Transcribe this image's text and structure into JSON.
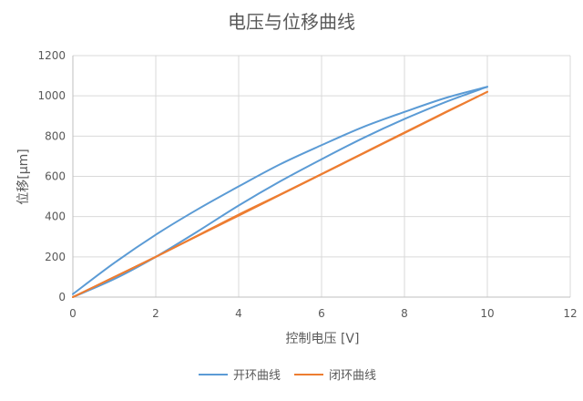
{
  "chart_data": {
    "type": "line",
    "title": "电压与位移曲线",
    "xlabel": "控制电压 [V]",
    "ylabel": "位移[μm]",
    "xlim": [
      0,
      12
    ],
    "ylim": [
      0,
      1200
    ],
    "xticks": [
      0,
      2,
      4,
      6,
      8,
      10,
      12
    ],
    "yticks": [
      0,
      200,
      400,
      600,
      800,
      1000,
      1200
    ],
    "grid": true,
    "legend_position": "bottom",
    "series": [
      {
        "name": "开环曲线",
        "color": "#5b9bd5",
        "segments": [
          {
            "label": "ascending",
            "x": [
              0,
              1,
              2,
              3,
              4,
              5,
              6,
              7,
              8,
              9,
              10
            ],
            "y": [
              0,
              90,
              200,
              325,
              455,
              575,
              685,
              790,
              885,
              970,
              1045
            ]
          },
          {
            "label": "descending",
            "x": [
              10,
              9,
              8,
              7,
              6,
              5,
              4,
              3,
              2,
              1,
              0
            ],
            "y": [
              1045,
              990,
              920,
              845,
              755,
              660,
              550,
              435,
              310,
              170,
              15
            ]
          }
        ]
      },
      {
        "name": "闭环曲线",
        "color": "#ed7d31",
        "segments": [
          {
            "label": "ascending",
            "x": [
              0,
              1,
              2,
              3,
              4,
              5,
              6,
              7,
              8,
              9,
              10
            ],
            "y": [
              0,
              100,
              200,
              305,
              410,
              510,
              612,
              715,
              818,
              920,
              1020
            ]
          },
          {
            "label": "descending",
            "x": [
              10,
              9,
              8,
              7,
              6,
              5,
              4,
              3,
              2,
              1,
              0
            ],
            "y": [
              1020,
              918,
              815,
              713,
              610,
              508,
              405,
              303,
              200,
              100,
              0
            ]
          }
        ]
      }
    ]
  }
}
